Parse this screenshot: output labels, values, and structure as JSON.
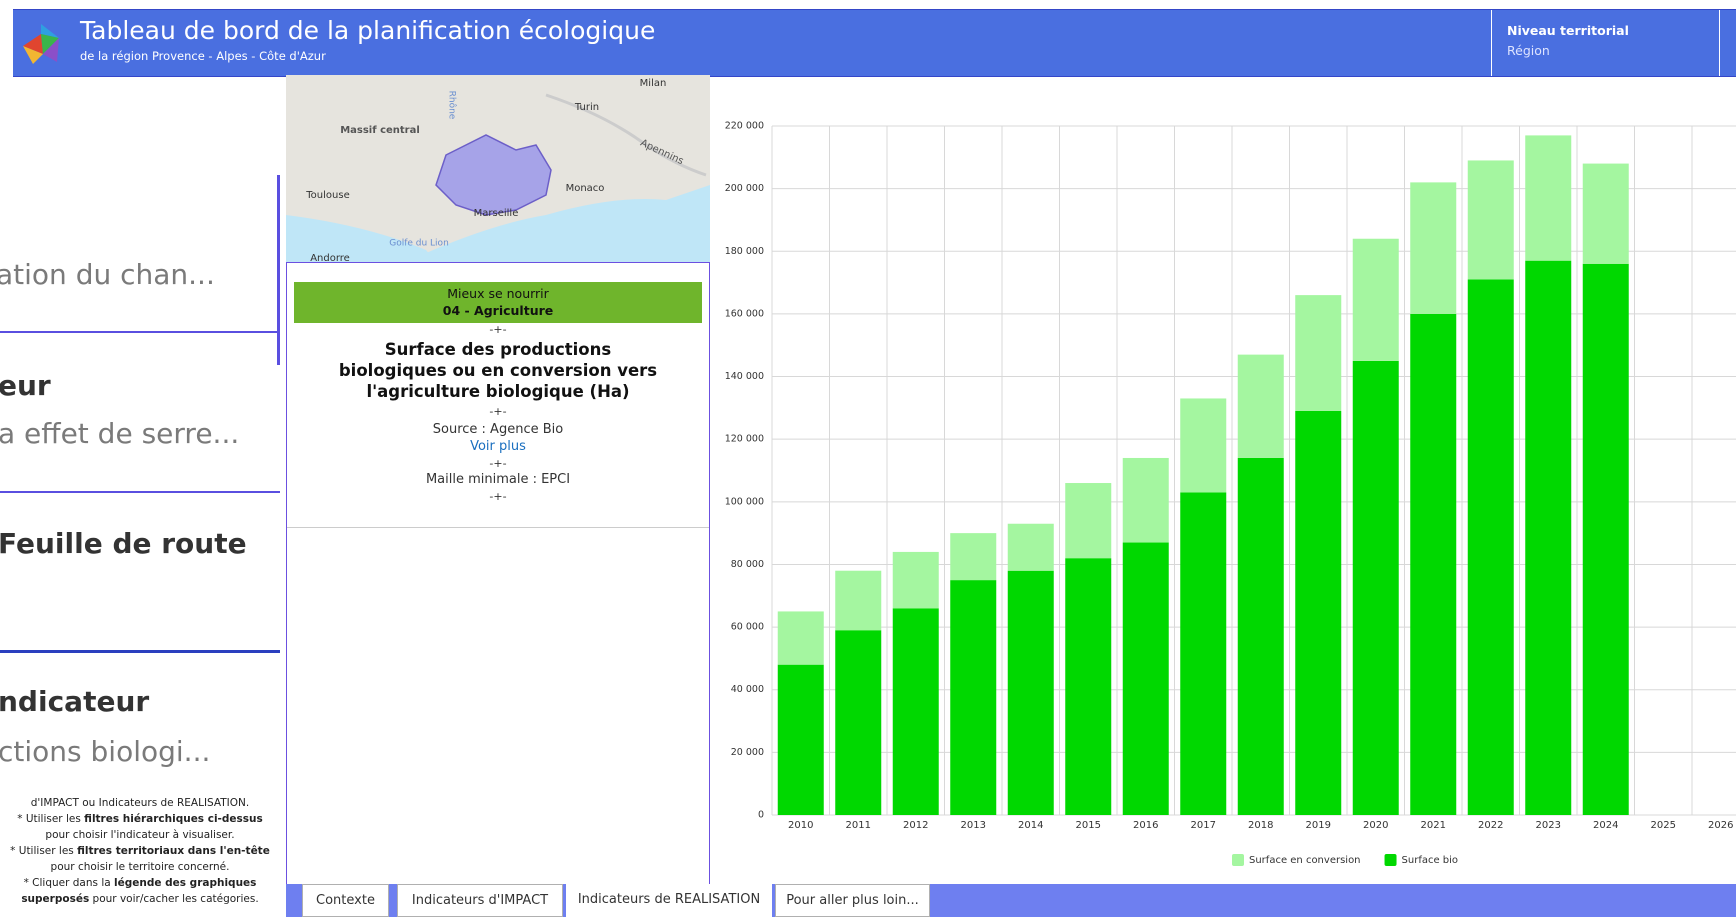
{
  "header": {
    "title": "Tableau de bord de la planification écologique",
    "subtitle": "de la région Provence - Alpes - Côte d'Azur",
    "filter_label": "Niveau territorial",
    "filter_value": "Région"
  },
  "left_panel": {
    "texts": [
      "ation du chan...",
      "eur",
      "a effet de serre...",
      "Feuille de route",
      "ndicateur",
      "ctions biologi..."
    ],
    "instructions": [
      [
        {
          "text": "d'IMPACT ou Indicateurs de REALISATION."
        }
      ],
      [
        {
          "text": "* Utiliser les "
        },
        {
          "text": "filtres hiérarchiques ci-dessus",
          "bold": true
        },
        {
          "text": " pour choisir l'indicateur à visualiser."
        }
      ],
      [
        {
          "text": "* Utiliser les "
        },
        {
          "text": "filtres territoriaux dans l'en-tête",
          "bold": true
        },
        {
          "text": " pour choisir le territoire concerné."
        }
      ],
      [
        {
          "text": "* Cliquer dans la "
        },
        {
          "text": "légende des graphiques superposés",
          "bold": true
        },
        {
          "text": " pour voir/cacher les catégories."
        }
      ]
    ]
  },
  "map": {
    "labels": [
      "Milan",
      "Turin",
      "Massif central",
      "Rhône",
      "Apennins",
      "Toulouse",
      "Monaco",
      "Marseille",
      "Golfe du Lion",
      "Andorre"
    ]
  },
  "indicator": {
    "theme": "Mieux se nourrir",
    "sector": "04 - Agriculture",
    "separator": "-+-",
    "title": "Surface des productions biologiques ou en conversion vers l'agriculture biologique (Ha)",
    "source": "Source : Agence Bio",
    "link": "Voir plus",
    "mesh": "Maille minimale : EPCI"
  },
  "chart": {
    "type": "bar",
    "stacked": true,
    "categories": [
      "2010",
      "2011",
      "2012",
      "2013",
      "2014",
      "2015",
      "2016",
      "2017",
      "2018",
      "2019",
      "2020",
      "2021",
      "2022",
      "2023",
      "2024",
      "2025",
      "2026"
    ],
    "series": [
      {
        "name": "Surface bio",
        "color": "#00d800",
        "values": [
          48000,
          59000,
          66000,
          75000,
          78000,
          82000,
          87000,
          103000,
          114000,
          129000,
          145000,
          160000,
          171000,
          177000,
          176000,
          null,
          null
        ]
      },
      {
        "name": "Surface en conversion",
        "color": "#a4f6a0",
        "values": [
          17000,
          19000,
          18000,
          15000,
          15000,
          24000,
          27000,
          30000,
          33000,
          37000,
          39000,
          42000,
          38000,
          40000,
          32000,
          null,
          null
        ]
      }
    ],
    "ylim": [
      0,
      220000
    ],
    "yticks": [
      0,
      {
        "value": 20000,
        "label": "20 000"
      },
      {
        "value": 40000,
        "label": "40 000"
      },
      {
        "value": 60000,
        "label": "60 000"
      },
      {
        "value": 80000,
        "label": "80 000"
      },
      {
        "value": 100000,
        "label": "100 000"
      },
      {
        "value": 120000,
        "label": "120 000"
      },
      {
        "value": 140000,
        "label": "140 000"
      },
      {
        "value": 160000,
        "label": "160 000"
      },
      {
        "value": 180000,
        "label": "180 000"
      },
      {
        "value": 200000,
        "label": "200 000"
      },
      {
        "value": 220000,
        "label": "220 000"
      }
    ],
    "grid": true,
    "legend": "bottom"
  },
  "tabs": {
    "items": [
      "Contexte",
      "Indicateurs d'IMPACT",
      "Indicateurs de REALISATION",
      "Pour aller plus loin..."
    ],
    "active": 2
  }
}
